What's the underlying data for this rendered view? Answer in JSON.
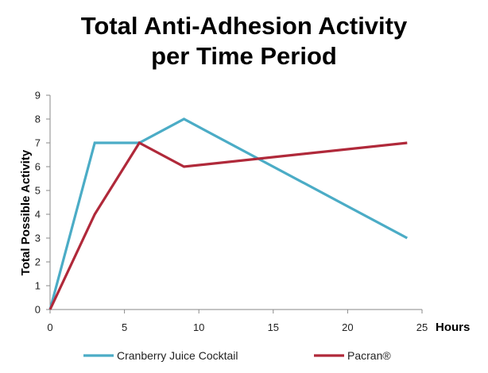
{
  "chart_data": {
    "type": "line",
    "title_lines": [
      "Total Anti-Adhesion Activity",
      "per Time Period"
    ],
    "xlabel": "Hours",
    "ylabel": "Total Possible Activity",
    "xlim": [
      0,
      25
    ],
    "ylim": [
      0,
      9
    ],
    "xticks": [
      0,
      5,
      10,
      15,
      20,
      25
    ],
    "yticks": [
      0,
      1,
      2,
      3,
      4,
      5,
      6,
      7,
      8,
      9
    ],
    "grid": false,
    "legend_position": "bottom",
    "series": [
      {
        "name": "Cranberry Juice Cocktail",
        "color": "#4bacc6",
        "points": [
          [
            0,
            0
          ],
          [
            3,
            7
          ],
          [
            6,
            7
          ],
          [
            9,
            8
          ],
          [
            24,
            3
          ]
        ]
      },
      {
        "name": "Pacran®",
        "color": "#b0293a",
        "points": [
          [
            0,
            0
          ],
          [
            3,
            4
          ],
          [
            6,
            7
          ],
          [
            9,
            6
          ],
          [
            24,
            7
          ]
        ]
      }
    ]
  }
}
